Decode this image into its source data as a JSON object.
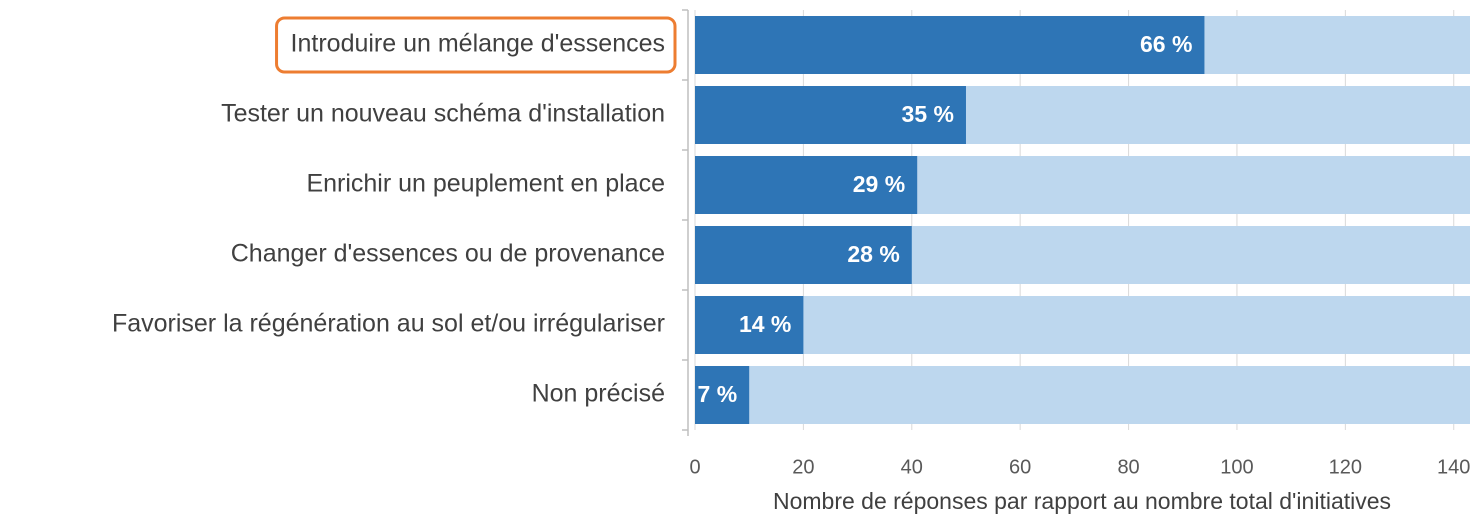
{
  "chart_data": {
    "type": "bar",
    "orientation": "horizontal",
    "x_label": "Nombre de réponses par rapport au nombre total d'initiatives",
    "categories": [
      "Introduire un mélange d'essences",
      "Tester un nouveau schéma d'installation",
      "Enrichir un peuplement en place",
      "Changer d'essences ou de provenance",
      "Favoriser la régénération au sol et/ou irrégulariser",
      "Non précisé"
    ],
    "series": [
      {
        "color": "#bdd7ee",
        "values": [
          143,
          143,
          143,
          143,
          143,
          143
        ]
      },
      {
        "color": "#2e75b6",
        "values": [
          94,
          50,
          41,
          40,
          20,
          10
        ],
        "data_labels": [
          "66 %",
          "35 %",
          "29 %",
          "28 %",
          "14 %",
          "7 %"
        ]
      }
    ],
    "overlap": true,
    "xlim": [
      0,
      143
    ],
    "xticks": [
      0,
      20,
      40,
      60,
      80,
      100,
      120,
      140
    ],
    "grid": true,
    "highlight": 0,
    "highlight_color": "#ed7d31"
  }
}
